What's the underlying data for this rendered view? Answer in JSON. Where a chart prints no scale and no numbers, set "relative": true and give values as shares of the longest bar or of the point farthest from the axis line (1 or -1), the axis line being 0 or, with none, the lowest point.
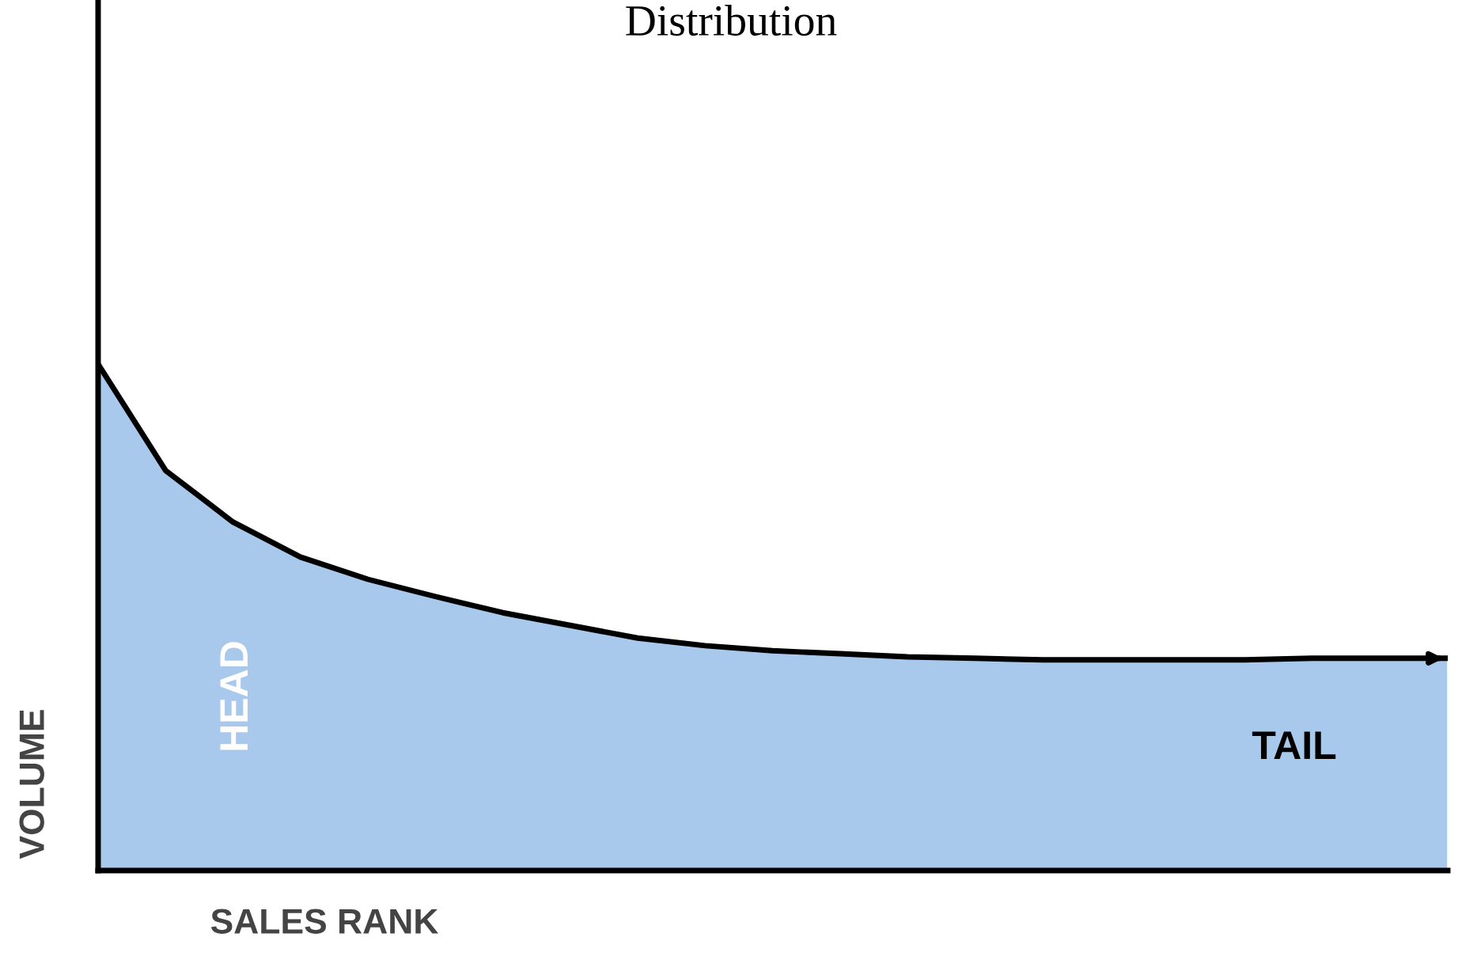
{
  "chart_data": {
    "type": "area",
    "title": "Distribution",
    "xlabel": "SALES RANK",
    "ylabel": "VOLUME",
    "relative": true,
    "categories": [
      null,
      null,
      null,
      null,
      null,
      null,
      null,
      null,
      null,
      null,
      null,
      null,
      null,
      null,
      null,
      null,
      null,
      null,
      null,
      null,
      null
    ],
    "series": [
      {
        "color": "#a9c9ec",
        "values": [
          1,
          0.79,
          0.688,
          0.619,
          0.575,
          0.541,
          0.509,
          0.484,
          0.459,
          0.444,
          0.434,
          0.428,
          0.422,
          0.419,
          0.416,
          0.416,
          0.416,
          0.416,
          0.419,
          0.419,
          0.419
        ]
      }
    ],
    "annotations": [
      "HEAD",
      "TAIL"
    ],
    "legend": false,
    "marker": "none",
    "line_style": "solid"
  }
}
